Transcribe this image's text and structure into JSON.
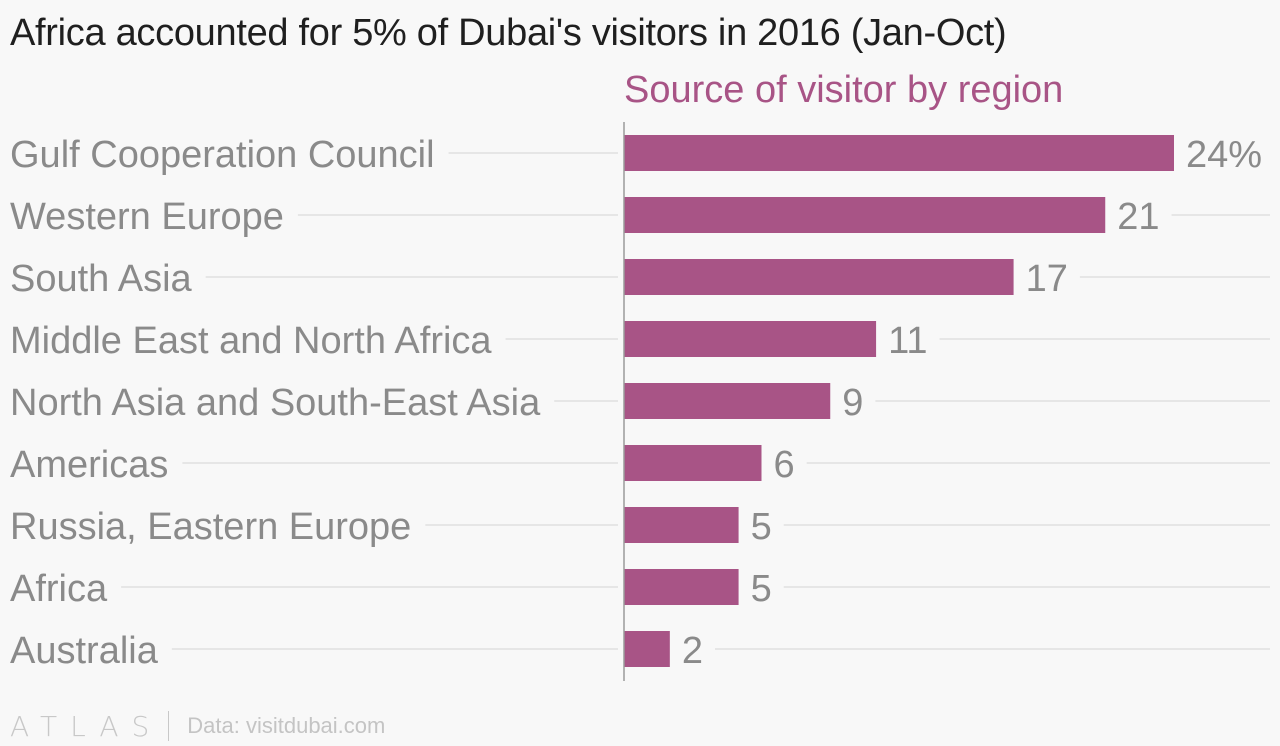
{
  "title": "Africa accounted for 5% of Dubai's visitors in 2016 (Jan-Oct)",
  "footer": {
    "brand": "ATLAS",
    "source": "Data: visitdubai.com"
  },
  "colors": {
    "bar": "#a85486",
    "subtitle": "#a85486",
    "category_label": "#8a8a8a",
    "value_label": "#8a8a8a",
    "gridline": "#e6e6e6",
    "axis": "#9a9a9a"
  },
  "chart_data": {
    "type": "bar",
    "orientation": "horizontal",
    "subtitle": "Source of visitor by region",
    "categories": [
      "Gulf Cooperation Council",
      "Western Europe",
      "South Asia",
      "Middle East and North Africa",
      "North Asia and South-East Asia",
      "Americas",
      "Russia, Eastern Europe",
      "Africa",
      "Australia"
    ],
    "values": [
      24,
      21,
      17,
      11,
      9,
      6,
      5,
      5,
      2
    ],
    "value_labels": [
      "24%",
      "21",
      "17",
      "11",
      "9",
      "6",
      "5",
      "5",
      "2"
    ],
    "xlim": [
      0,
      24
    ],
    "grid": true
  }
}
